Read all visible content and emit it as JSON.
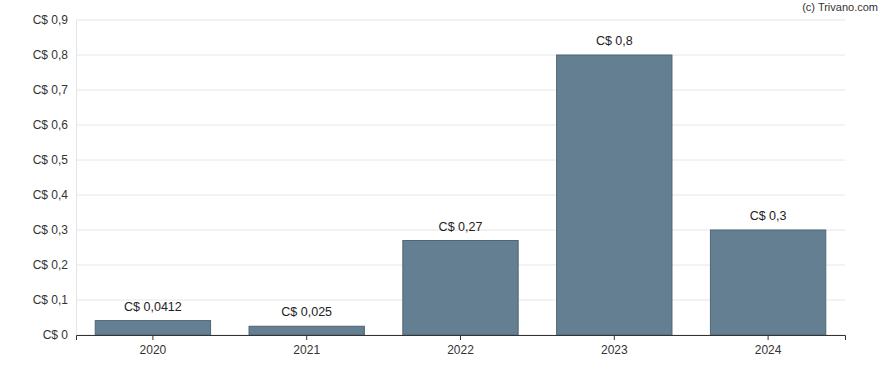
{
  "chart_data": {
    "type": "bar",
    "annotations": [
      "(c) Trivano.com"
    ],
    "categories": [
      "2020",
      "2021",
      "2022",
      "2023",
      "2024"
    ],
    "values": [
      0.0412,
      0.025,
      0.27,
      0.8,
      0.3
    ],
    "value_labels": [
      "C$ 0,0412",
      "C$ 0,025",
      "C$ 0,27",
      "C$ 0,8",
      "C$ 0,3"
    ],
    "color": "#647f92",
    "ylim": [
      0,
      0.9
    ],
    "yticks": [
      {
        "value": 0,
        "label": "C$ 0"
      },
      {
        "value": 0.1,
        "label": "C$ 0,1"
      },
      {
        "value": 0.2,
        "label": "C$ 0,2"
      },
      {
        "value": 0.3,
        "label": "C$ 0,3"
      },
      {
        "value": 0.4,
        "label": "C$ 0,4"
      },
      {
        "value": 0.5,
        "label": "C$ 0,5"
      },
      {
        "value": 0.6,
        "label": "C$ 0,6"
      },
      {
        "value": 0.7,
        "label": "C$ 0,7"
      },
      {
        "value": 0.8,
        "label": "C$ 0,8"
      },
      {
        "value": 0.9,
        "label": "C$ 0,9"
      }
    ],
    "grid": true,
    "data_labels": true
  }
}
